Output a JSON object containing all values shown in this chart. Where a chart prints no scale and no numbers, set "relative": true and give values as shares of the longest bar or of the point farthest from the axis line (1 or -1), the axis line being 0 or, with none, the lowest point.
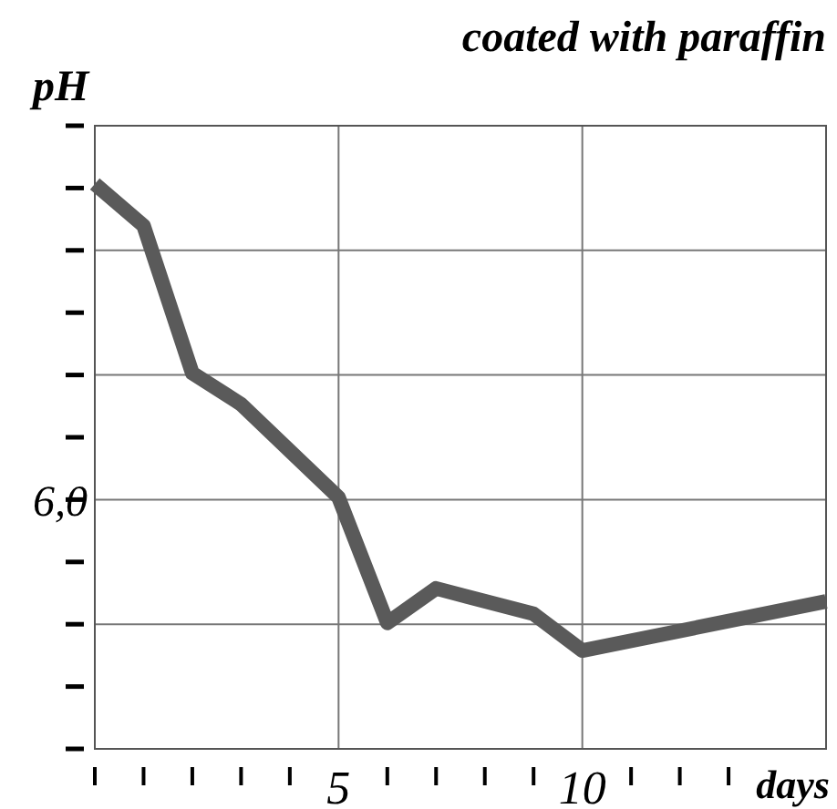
{
  "chart_data": {
    "type": "line",
    "title": "coated with paraffin",
    "ylabel": "pH",
    "xlabel": "days",
    "relative": true,
    "x": [
      0,
      1,
      2,
      3,
      5,
      6,
      7,
      9,
      10,
      15
    ],
    "series": [
      {
        "color": "#5a5a5a",
        "values": [
          1,
          0.926,
          0.665,
          0.61,
          0.445,
          0.223,
          0.284,
          0.239,
          0.174,
          0.261
        ]
      }
    ],
    "xlim": [
      0,
      15
    ],
    "xticks": [
      {
        "value": 0,
        "label": null
      },
      {
        "value": 1,
        "label": null
      },
      {
        "value": 2,
        "label": null
      },
      {
        "value": 3,
        "label": null
      },
      {
        "value": 4,
        "label": null
      },
      5,
      {
        "value": 6,
        "label": null
      },
      {
        "value": 7,
        "label": null
      },
      {
        "value": 8,
        "label": null
      },
      {
        "value": 9,
        "label": null
      },
      10,
      {
        "value": 11,
        "label": null
      },
      {
        "value": 12,
        "label": null
      },
      {
        "value": 13,
        "label": null
      }
    ],
    "annotations": [
      "6,0"
    ],
    "grid": true,
    "marker": "none",
    "line_style": "solid"
  }
}
